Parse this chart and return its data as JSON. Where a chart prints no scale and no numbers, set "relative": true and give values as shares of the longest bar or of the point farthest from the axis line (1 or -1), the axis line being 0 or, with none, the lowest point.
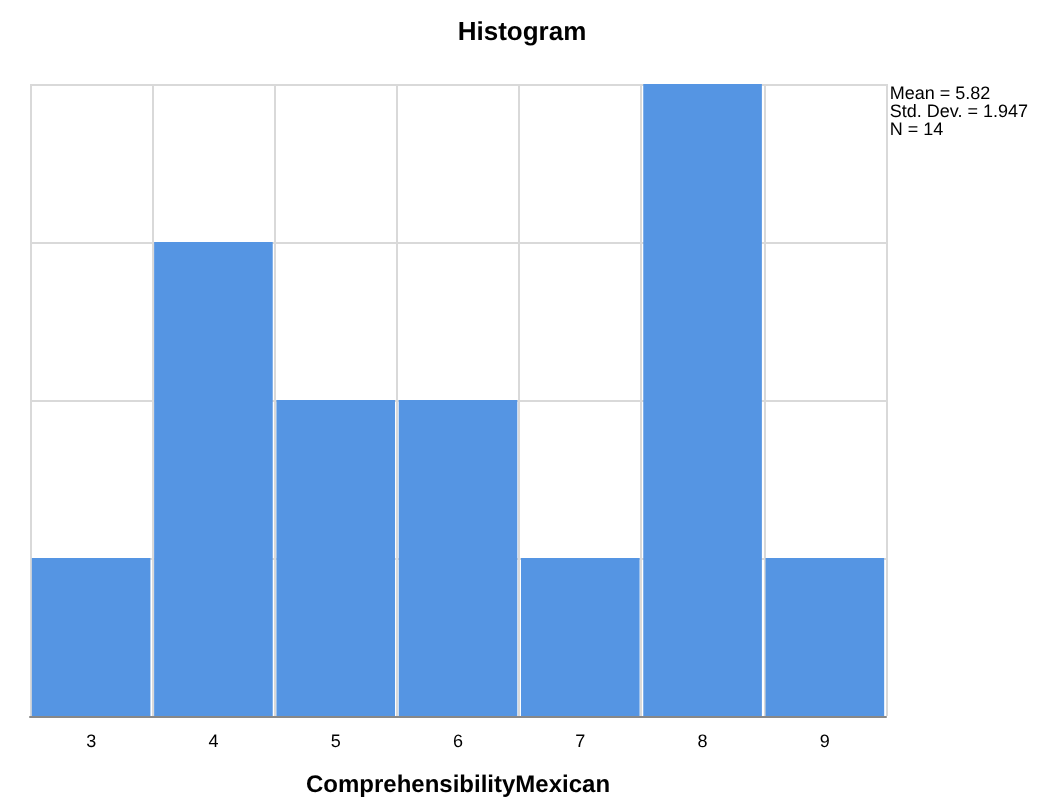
{
  "chart_data": {
    "type": "bar",
    "title": "Histogram",
    "xlabel": "ComprehensibilityMexican",
    "categories": [
      "3",
      "4",
      "5",
      "6",
      "7",
      "8",
      "9"
    ],
    "values": [
      0.25,
      0.75,
      0.5,
      0.5,
      0.25,
      1,
      0.25
    ],
    "color": "#5595e3",
    "relative": true,
    "grid": true,
    "annotations": [
      "Mean = 5.82\nStd. Dev. = 1.947\nN = 14"
    ]
  }
}
